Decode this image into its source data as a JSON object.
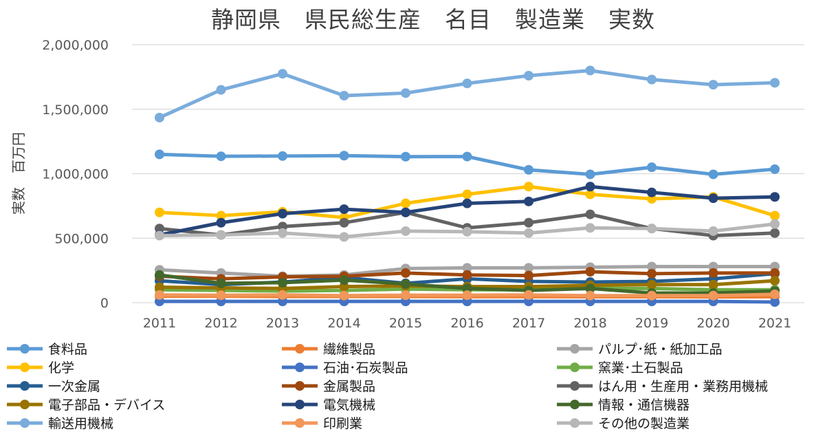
{
  "chart_data": {
    "type": "line",
    "title": "静岡県　県民総生産　名目　製造業　実数",
    "xlabel": "",
    "ylabel": "実数　百万円",
    "ylim": [
      0,
      2000000
    ],
    "yticks": [
      0,
      500000,
      1000000,
      1500000,
      2000000
    ],
    "ytick_labels": [
      "0",
      "500,000",
      "1,000,000",
      "1,500,000",
      "2,000,000"
    ],
    "grid": true,
    "legend_position": "bottom",
    "categories": [
      "2011",
      "2012",
      "2013",
      "2014",
      "2015",
      "2016",
      "2017",
      "2018",
      "2019",
      "2020",
      "2021"
    ],
    "series": [
      {
        "name": "食料品",
        "color": "#5b9bd5",
        "values": [
          1150000,
          1135000,
          1137000,
          1140000,
          1132000,
          1133000,
          1030000,
          995000,
          1050000,
          995000,
          1035000
        ]
      },
      {
        "name": "繊維製品",
        "color": "#ed7d31",
        "values": [
          50000,
          50000,
          48000,
          48000,
          48000,
          47000,
          47000,
          46000,
          46000,
          45000,
          46000
        ]
      },
      {
        "name": "パルプ･紙・紙加工品",
        "color": "#a5a5a5",
        "values": [
          255000,
          230000,
          205000,
          215000,
          265000,
          270000,
          270000,
          275000,
          280000,
          280000,
          280000
        ]
      },
      {
        "name": "化学",
        "color": "#ffc000",
        "values": [
          700000,
          675000,
          705000,
          660000,
          770000,
          840000,
          900000,
          840000,
          805000,
          820000,
          675000
        ]
      },
      {
        "name": "石油･石炭製品",
        "color": "#4472c4",
        "values": [
          10000,
          10000,
          10000,
          10000,
          10000,
          10000,
          10000,
          10000,
          10000,
          10000,
          5000
        ]
      },
      {
        "name": "窯業･土石製品",
        "color": "#70ad47",
        "values": [
          100000,
          95000,
          90000,
          95000,
          105000,
          100000,
          100000,
          110000,
          110000,
          100000,
          100000
        ]
      },
      {
        "name": "一次金属",
        "color": "#255e91",
        "values": [
          170000,
          140000,
          160000,
          195000,
          150000,
          185000,
          165000,
          160000,
          165000,
          185000,
          225000
        ]
      },
      {
        "name": "金属製品",
        "color": "#9e480e",
        "values": [
          205000,
          185000,
          200000,
          205000,
          230000,
          215000,
          210000,
          240000,
          225000,
          230000,
          230000
        ]
      },
      {
        "name": "はん用・生産用・業務用機械",
        "color": "#636363",
        "values": [
          575000,
          525000,
          590000,
          620000,
          700000,
          580000,
          620000,
          685000,
          575000,
          520000,
          540000
        ]
      },
      {
        "name": "電子部品・デバイス",
        "color": "#997300",
        "values": [
          120000,
          115000,
          110000,
          125000,
          130000,
          125000,
          125000,
          135000,
          140000,
          140000,
          170000
        ]
      },
      {
        "name": "電気機械",
        "color": "#264478",
        "values": [
          525000,
          620000,
          690000,
          725000,
          700000,
          770000,
          785000,
          900000,
          855000,
          810000,
          820000
        ]
      },
      {
        "name": "情報・通信機器",
        "color": "#43682b",
        "values": [
          215000,
          150000,
          155000,
          175000,
          145000,
          110000,
          95000,
          110000,
          75000,
          75000,
          90000
        ]
      },
      {
        "name": "輸送用機械",
        "color": "#7aacdc",
        "values": [
          1435000,
          1650000,
          1775000,
          1605000,
          1625000,
          1700000,
          1760000,
          1800000,
          1730000,
          1690000,
          1705000
        ]
      },
      {
        "name": "印刷業",
        "color": "#f1975a",
        "values": [
          60000,
          58000,
          60000,
          55000,
          58000,
          58000,
          60000,
          55000,
          55000,
          55000,
          65000
        ]
      },
      {
        "name": "その他の製造業",
        "color": "#b7b7b7",
        "values": [
          520000,
          525000,
          540000,
          510000,
          555000,
          550000,
          540000,
          580000,
          575000,
          555000,
          610000
        ]
      }
    ]
  }
}
